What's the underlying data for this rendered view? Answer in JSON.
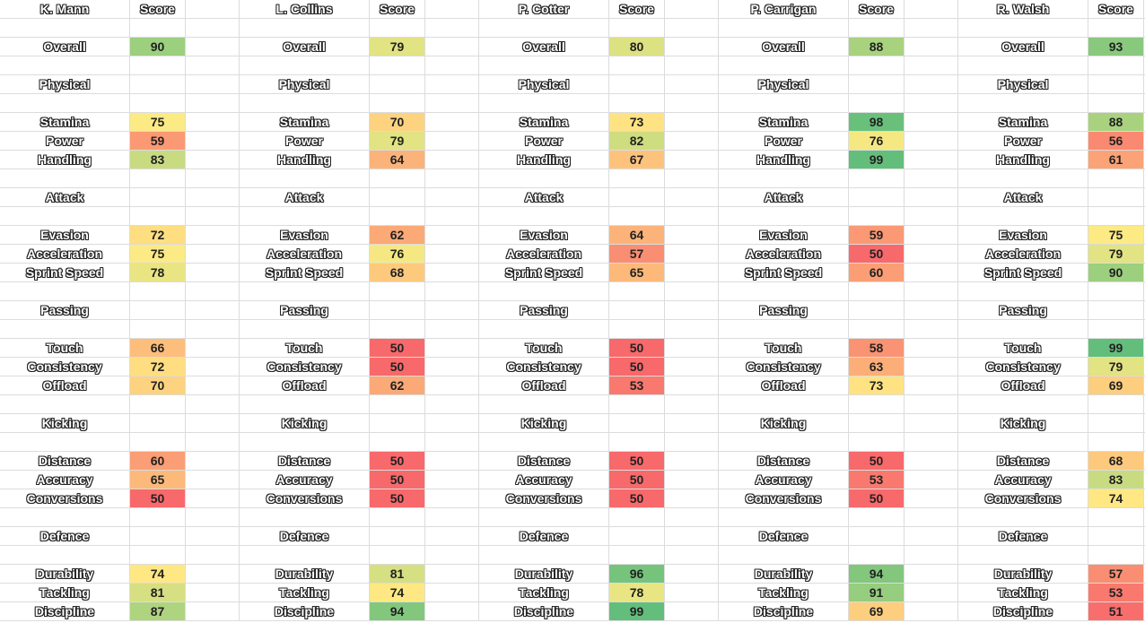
{
  "score_header": "Score",
  "overall_label": "Overall",
  "categories": [
    {
      "name": "Physical",
      "attributes": [
        "Stamina",
        "Power",
        "Handling"
      ]
    },
    {
      "name": "Attack",
      "attributes": [
        "Evasion",
        "Acceleration",
        "Sprint Speed"
      ]
    },
    {
      "name": "Passing",
      "attributes": [
        "Touch",
        "Consistency",
        "Offload"
      ]
    },
    {
      "name": "Kicking",
      "attributes": [
        "Distance",
        "Accuracy",
        "Conversions"
      ]
    },
    {
      "name": "Defence",
      "attributes": [
        "Durability",
        "Tackling",
        "Discipline"
      ]
    }
  ],
  "color_scale": {
    "low": "#f8696b",
    "mid": "#ffeb84",
    "high": "#63be7b",
    "min_value": 50,
    "max_value": 99
  },
  "players": [
    {
      "name": "K. Mann",
      "overall": 90,
      "stats": [
        [
          75,
          59,
          83
        ],
        [
          72,
          75,
          78
        ],
        [
          66,
          72,
          70
        ],
        [
          60,
          65,
          50
        ],
        [
          74,
          81,
          87
        ]
      ]
    },
    {
      "name": "L. Collins",
      "overall": 79,
      "stats": [
        [
          70,
          79,
          64
        ],
        [
          62,
          76,
          68
        ],
        [
          50,
          50,
          62
        ],
        [
          50,
          50,
          50
        ],
        [
          81,
          74,
          94
        ]
      ]
    },
    {
      "name": "P. Cotter",
      "overall": 80,
      "stats": [
        [
          73,
          82,
          67
        ],
        [
          64,
          57,
          65
        ],
        [
          50,
          50,
          53
        ],
        [
          50,
          50,
          50
        ],
        [
          96,
          78,
          99
        ]
      ]
    },
    {
      "name": "P. Carrigan",
      "overall": 88,
      "stats": [
        [
          98,
          76,
          99
        ],
        [
          59,
          50,
          60
        ],
        [
          58,
          63,
          73
        ],
        [
          50,
          53,
          50
        ],
        [
          94,
          91,
          69
        ]
      ]
    },
    {
      "name": "R. Walsh",
      "overall": 93,
      "stats": [
        [
          88,
          56,
          61
        ],
        [
          75,
          79,
          90
        ],
        [
          99,
          79,
          69
        ],
        [
          68,
          83,
          74
        ],
        [
          57,
          53,
          51
        ]
      ]
    }
  ]
}
